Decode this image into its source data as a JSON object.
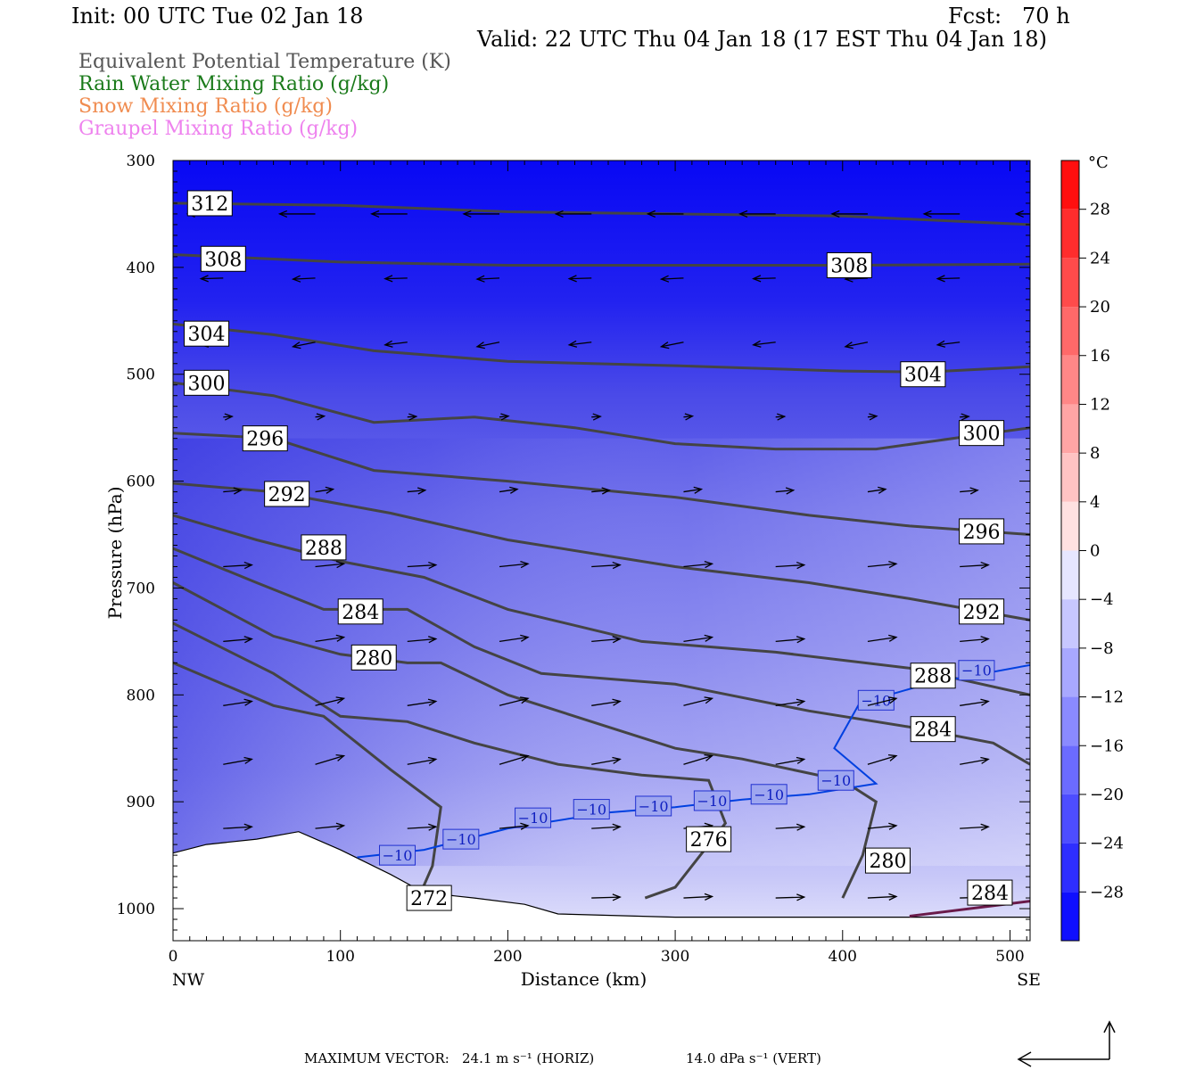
{
  "header": {
    "init": "Init: 00 UTC Tue 02 Jan 18",
    "fcst": "Fcst:   70 h",
    "valid": "Valid: 22 UTC Thu 04 Jan 18 (17 EST Thu 04 Jan 18)"
  },
  "legend": [
    {
      "label": "Equivalent Potential Temperature (K)",
      "color": "#555555"
    },
    {
      "label": "Rain Water Mixing Ratio (g/kg)",
      "color": "#1a7a1a"
    },
    {
      "label": "Snow Mixing Ratio (g/kg)",
      "color": "#f08c50"
    },
    {
      "label": "Graupel Mixing Ratio (g/kg)",
      "color": "#ee82ee"
    }
  ],
  "chart_data": {
    "type": "heatmap",
    "xlabel": "Distance (km)",
    "ylabel": "Pressure (hPa)",
    "xlim": [
      0,
      512
    ],
    "ylim": [
      1030,
      300
    ],
    "x_ticks": [
      0,
      100,
      200,
      300,
      400,
      500
    ],
    "y_ticks": [
      300,
      400,
      500,
      600,
      700,
      800,
      900,
      1000
    ],
    "x_end_labels": {
      "left": "NW",
      "right": "SE"
    },
    "colorbar": {
      "unit": "°C",
      "ticks": [
        28,
        24,
        20,
        16,
        12,
        8,
        4,
        0,
        -4,
        -8,
        -12,
        -16,
        -20,
        -24,
        -28
      ],
      "range": [
        -32,
        32
      ]
    },
    "contours": [
      {
        "label": "312",
        "label_pos": [
          22,
          340
        ],
        "points": [
          [
            0,
            340
          ],
          [
            100,
            342
          ],
          [
            200,
            348
          ],
          [
            300,
            350
          ],
          [
            400,
            352
          ],
          [
            512,
            360
          ]
        ]
      },
      {
        "label": "308",
        "label_pos": [
          30,
          392
        ],
        "points": [
          [
            0,
            388
          ],
          [
            100,
            395
          ],
          [
            200,
            398
          ],
          [
            300,
            398
          ],
          [
            400,
            398
          ],
          [
            512,
            397
          ]
        ]
      },
      {
        "label": "308",
        "label_pos": [
          404,
          398
        ],
        "points": []
      },
      {
        "label": "304",
        "label_pos": [
          20,
          462
        ],
        "points": [
          [
            0,
            453
          ],
          [
            60,
            463
          ],
          [
            120,
            478
          ],
          [
            200,
            488
          ],
          [
            300,
            492
          ],
          [
            400,
            497
          ],
          [
            450,
            498
          ],
          [
            512,
            493
          ]
        ]
      },
      {
        "label": "304",
        "label_pos": [
          448,
          500
        ],
        "points": []
      },
      {
        "label": "300",
        "label_pos": [
          20,
          508
        ],
        "points": [
          [
            0,
            508
          ],
          [
            60,
            520
          ],
          [
            120,
            545
          ],
          [
            180,
            540
          ],
          [
            240,
            550
          ],
          [
            300,
            565
          ],
          [
            360,
            570
          ],
          [
            420,
            570
          ],
          [
            512,
            550
          ]
        ]
      },
      {
        "label": "300",
        "label_pos": [
          483,
          555
        ],
        "points": []
      },
      {
        "label": "296",
        "label_pos": [
          55,
          560
        ],
        "points": [
          [
            0,
            555
          ],
          [
            60,
            560
          ],
          [
            120,
            590
          ],
          [
            200,
            600
          ],
          [
            300,
            615
          ],
          [
            380,
            632
          ],
          [
            440,
            642
          ],
          [
            512,
            650
          ]
        ]
      },
      {
        "label": "296",
        "label_pos": [
          483,
          647
        ],
        "points": []
      },
      {
        "label": "292",
        "label_pos": [
          68,
          612
        ],
        "points": [
          [
            0,
            602
          ],
          [
            60,
            610
          ],
          [
            130,
            630
          ],
          [
            200,
            655
          ],
          [
            300,
            680
          ],
          [
            380,
            695
          ],
          [
            440,
            710
          ],
          [
            512,
            730
          ]
        ]
      },
      {
        "label": "292",
        "label_pos": [
          483,
          722
        ],
        "points": []
      },
      {
        "label": "288",
        "label_pos": [
          90,
          662
        ],
        "points": [
          [
            0,
            632
          ],
          [
            50,
            655
          ],
          [
            100,
            675
          ],
          [
            150,
            690
          ],
          [
            200,
            720
          ],
          [
            280,
            750
          ],
          [
            360,
            760
          ],
          [
            440,
            775
          ],
          [
            512,
            800
          ]
        ]
      },
      {
        "label": "288",
        "label_pos": [
          454,
          782
        ],
        "points": []
      },
      {
        "label": "284",
        "label_pos": [
          112,
          722
        ],
        "points": [
          [
            0,
            663
          ],
          [
            50,
            695
          ],
          [
            90,
            720
          ],
          [
            140,
            720
          ],
          [
            180,
            755
          ],
          [
            220,
            780
          ],
          [
            300,
            790
          ],
          [
            380,
            815
          ],
          [
            440,
            830
          ],
          [
            490,
            845
          ],
          [
            512,
            865
          ]
        ]
      },
      {
        "label": "284",
        "label_pos": [
          454,
          832
        ],
        "points": []
      },
      {
        "label": "280",
        "label_pos": [
          120,
          765
        ],
        "points": [
          [
            0,
            695
          ],
          [
            60,
            745
          ],
          [
            100,
            762
          ],
          [
            140,
            770
          ],
          [
            160,
            770
          ],
          [
            200,
            800
          ],
          [
            250,
            825
          ],
          [
            300,
            850
          ],
          [
            340,
            860
          ],
          [
            400,
            880
          ],
          [
            420,
            900
          ],
          [
            412,
            950
          ],
          [
            400,
            990
          ]
        ]
      },
      {
        "label": "280",
        "label_pos": [
          427,
          955
        ],
        "points": []
      },
      {
        "label": "276",
        "label_pos": [
          320,
          935
        ],
        "points": [
          [
            0,
            733
          ],
          [
            60,
            780
          ],
          [
            100,
            820
          ],
          [
            140,
            825
          ],
          [
            180,
            845
          ],
          [
            230,
            865
          ],
          [
            280,
            875
          ],
          [
            320,
            880
          ],
          [
            330,
            920
          ],
          [
            300,
            980
          ],
          [
            282,
            990
          ]
        ]
      },
      {
        "label": "272",
        "label_pos": [
          153,
          990
        ],
        "points": [
          [
            0,
            770
          ],
          [
            60,
            810
          ],
          [
            90,
            820
          ],
          [
            110,
            845
          ],
          [
            130,
            870
          ],
          [
            160,
            905
          ],
          [
            155,
            960
          ],
          [
            148,
            985
          ]
        ]
      },
      {
        "label": "284",
        "label_pos": [
          488,
          985
        ],
        "points": []
      }
    ],
    "minus10_labels": [
      -10,
      -10,
      -10,
      -10,
      -10,
      -10,
      -10,
      -10,
      -10,
      -10
    ],
    "vector_max": {
      "label": "MAXIMUM VECTOR:",
      "horiz": "24.1 m s⁻¹ (HORIZ)",
      "vert": "14.0 dPa s⁻¹ (VERT)"
    }
  },
  "colors": {
    "cold": "#0000ff",
    "warm": "#ff0000",
    "contour": "#444444",
    "isotherm": "#0040e0"
  }
}
